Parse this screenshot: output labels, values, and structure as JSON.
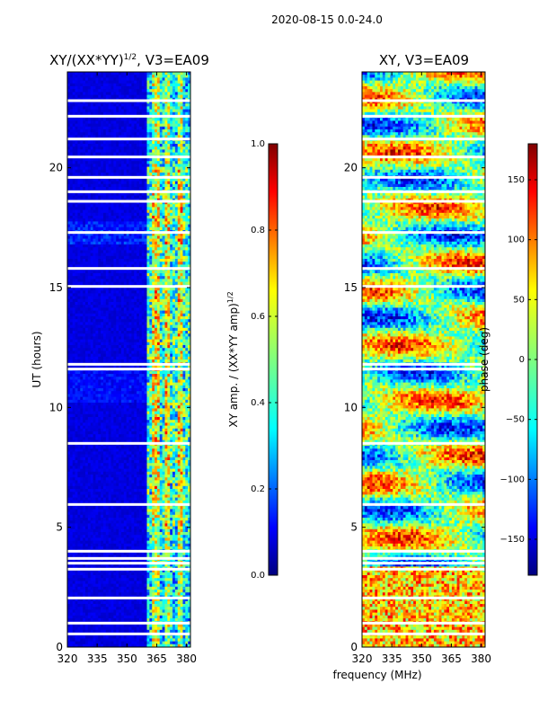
{
  "figure": {
    "suptitle": "2020-08-15 0.0-24.0",
    "shared_xlabel": "frequency (MHz)"
  },
  "chart_data": [
    {
      "type": "heatmap",
      "title_main": "XY/(XX*YY)",
      "title_exp": "1/2",
      "title_suffix": ", V3=EA09",
      "ylabel": "UT (hours)",
      "xlim": [
        320,
        382
      ],
      "ylim": [
        0,
        24
      ],
      "xticks": [
        320,
        335,
        350,
        365,
        380
      ],
      "yticks": [
        0,
        5,
        10,
        15,
        20
      ],
      "band_edge_MHz": 359.5,
      "colorbar": {
        "label_main": "XY amp. / (XX*YY amp)",
        "label_exp": "1/2",
        "range": [
          0.0,
          1.0
        ],
        "ticks": [
          "0.0",
          "0.2",
          "0.4",
          "0.6",
          "0.8",
          "1.0"
        ]
      }
    },
    {
      "type": "heatmap",
      "title": "XY, V3=EA09",
      "xlim": [
        320,
        382
      ],
      "ylim": [
        0,
        24
      ],
      "xticks": [
        320,
        335,
        350,
        365,
        380
      ],
      "yticks": [
        0,
        5,
        10,
        15,
        20
      ],
      "colorbar": {
        "label": "phase (deg)",
        "range": [
          -180,
          180
        ],
        "ticks": [
          "150",
          "100",
          "50",
          "0",
          "−50",
          "−100",
          "−150"
        ]
      }
    }
  ],
  "flagged_hours": [
    0.55,
    1.0,
    2.05,
    3.25,
    3.5,
    3.7,
    4.0,
    5.95,
    8.5,
    11.6,
    11.8,
    15.05,
    15.8,
    17.3,
    18.6,
    19.0,
    19.6,
    20.45,
    21.2,
    22.15,
    22.8
  ],
  "colors": {
    "jet": [
      "#00007f",
      "#0000ff",
      "#007fff",
      "#00ffff",
      "#7fff7f",
      "#ffff00",
      "#ff7f00",
      "#ff0000",
      "#7f0000"
    ]
  }
}
